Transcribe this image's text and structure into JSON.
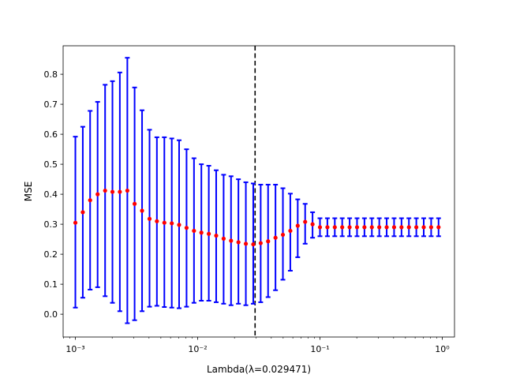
{
  "chart_data": {
    "type": "scatter",
    "title": "",
    "xlabel": "Lambda(λ=0.029471)",
    "ylabel": "MSE",
    "xscale": "log",
    "xlim": [
      0.000794,
      1.259
    ],
    "ylim": [
      -0.076,
      0.895
    ],
    "grid": false,
    "xticks": [
      0.001,
      0.01,
      0.1,
      1
    ],
    "xtick_labels": [
      "10⁻³",
      "10⁻²",
      "10⁻¹",
      "10⁰"
    ],
    "yticks": [
      0.0,
      0.1,
      0.2,
      0.3,
      0.4,
      0.5,
      0.6,
      0.7,
      0.8
    ],
    "ytick_labels": [
      "0.0",
      "0.1",
      "0.2",
      "0.3",
      "0.4",
      "0.5",
      "0.6",
      "0.7",
      "0.8"
    ],
    "selected_lambda": 0.029471,
    "colors": {
      "errorbar": "#0000ff",
      "point": "#ff0000",
      "vline": "#000000"
    },
    "series": [
      {
        "x": [
          0.001,
          0.00115,
          0.00132,
          0.00152,
          0.00175,
          0.00201,
          0.00231,
          0.00266,
          0.00305,
          0.00351,
          0.00404,
          0.00464,
          0.00534,
          0.00614,
          0.00705,
          0.00811,
          0.00933,
          0.01072,
          0.01233,
          0.01417,
          0.0163,
          0.01874,
          0.02154,
          0.02477,
          0.02848,
          0.03275,
          0.03765,
          0.04329,
          0.04977,
          0.05722,
          0.06579,
          0.07565,
          0.08697,
          0.1,
          0.11498,
          0.13219,
          0.15199,
          0.17475,
          0.20092,
          0.23101,
          0.26561,
          0.30539,
          0.35112,
          0.4037,
          0.46416,
          0.53367,
          0.61359,
          0.70548,
          0.81113,
          0.9326
        ],
        "y": [
          0.305,
          0.34,
          0.38,
          0.4,
          0.412,
          0.408,
          0.408,
          0.412,
          0.368,
          0.345,
          0.318,
          0.31,
          0.305,
          0.303,
          0.298,
          0.288,
          0.278,
          0.272,
          0.268,
          0.262,
          0.252,
          0.245,
          0.24,
          0.235,
          0.233,
          0.237,
          0.243,
          0.255,
          0.265,
          0.278,
          0.295,
          0.308,
          0.3,
          0.29,
          0.29,
          0.29,
          0.29,
          0.29,
          0.29,
          0.29,
          0.29,
          0.29,
          0.29,
          0.29,
          0.29,
          0.29,
          0.29,
          0.29,
          0.29,
          0.29
        ],
        "yerr_low": [
          0.022,
          0.055,
          0.082,
          0.09,
          0.06,
          0.038,
          0.01,
          -0.03,
          -0.02,
          0.01,
          0.025,
          0.028,
          0.024,
          0.022,
          0.02,
          0.025,
          0.038,
          0.045,
          0.045,
          0.04,
          0.035,
          0.03,
          0.035,
          0.03,
          0.035,
          0.04,
          0.057,
          0.08,
          0.115,
          0.145,
          0.19,
          0.235,
          0.255,
          0.26,
          0.26,
          0.26,
          0.26,
          0.26,
          0.26,
          0.26,
          0.26,
          0.26,
          0.26,
          0.26,
          0.26,
          0.26,
          0.26,
          0.26,
          0.26,
          0.26
        ],
        "yerr_high": [
          0.592,
          0.625,
          0.678,
          0.708,
          0.765,
          0.777,
          0.806,
          0.855,
          0.756,
          0.68,
          0.615,
          0.59,
          0.59,
          0.586,
          0.58,
          0.55,
          0.52,
          0.5,
          0.495,
          0.48,
          0.465,
          0.46,
          0.45,
          0.44,
          0.436,
          0.432,
          0.432,
          0.432,
          0.42,
          0.402,
          0.383,
          0.368,
          0.34,
          0.32,
          0.32,
          0.32,
          0.32,
          0.32,
          0.32,
          0.32,
          0.32,
          0.32,
          0.32,
          0.32,
          0.32,
          0.32,
          0.32,
          0.32,
          0.32,
          0.32
        ]
      }
    ]
  }
}
